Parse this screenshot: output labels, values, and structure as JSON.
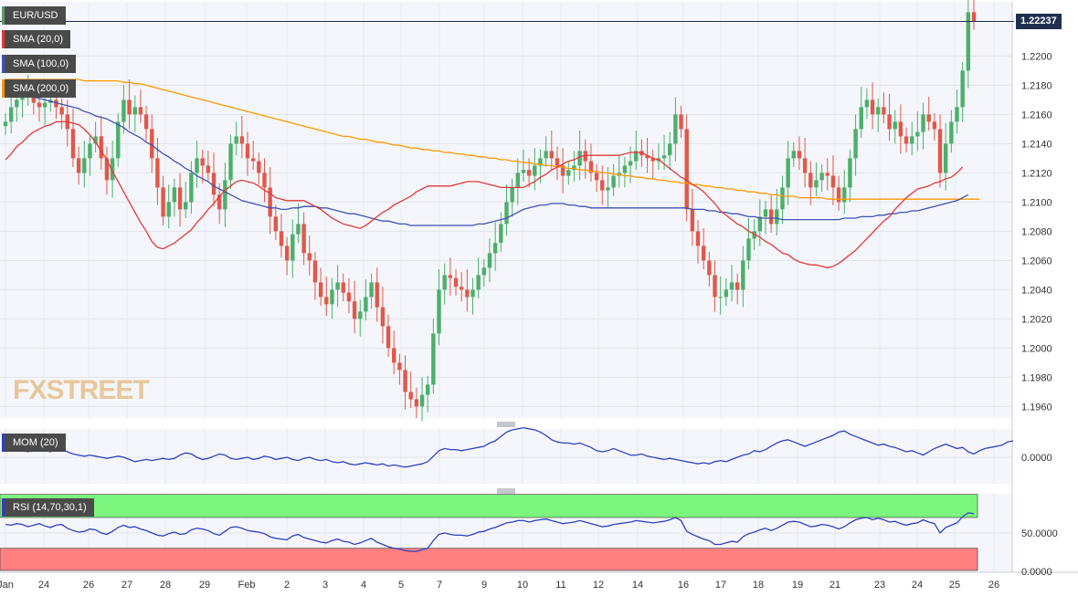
{
  "chart_data": [
    {
      "type": "candlestick",
      "title": "EUR/USD",
      "last_price": "1.22237",
      "y_ticks": [
        "1.1960",
        "1.1980",
        "1.2000",
        "1.2020",
        "1.2040",
        "1.2060",
        "1.2080",
        "1.2100",
        "1.2120",
        "1.2140",
        "1.2160",
        "1.2180",
        "1.2200"
      ],
      "ylim": [
        1.1951,
        1.2237
      ],
      "x_ticks": [
        "Jan",
        "24",
        "26",
        "27",
        "28",
        "29",
        "Feb",
        "2",
        "3",
        "4",
        "5",
        "7",
        "9",
        "10",
        "11",
        "12",
        "14",
        "16",
        "17",
        "18",
        "19",
        "21",
        "23",
        "24",
        "25",
        "26"
      ],
      "indicators": [
        {
          "name": "SMA (20,0)",
          "color": "#e53935"
        },
        {
          "name": "SMA (100,0)",
          "color": "#3f51b5"
        },
        {
          "name": "SMA (200,0)",
          "color": "#ff9800"
        }
      ],
      "watermark": "FXSTREET",
      "closes": [
        1.2155,
        1.2165,
        1.217,
        1.2172,
        1.2175,
        1.2168,
        1.2165,
        1.2168,
        1.217,
        1.2165,
        1.216,
        1.215,
        1.213,
        1.212,
        1.213,
        1.214,
        1.2145,
        1.213,
        1.2115,
        1.213,
        1.2155,
        1.217,
        1.216,
        1.2165,
        1.216,
        1.215,
        1.213,
        1.211,
        1.209,
        1.21,
        1.211,
        1.2095,
        1.21,
        1.212,
        1.213,
        1.2125,
        1.212,
        1.2105,
        1.2095,
        1.2115,
        1.214,
        1.2145,
        1.214,
        1.213,
        1.2128,
        1.212,
        1.211,
        1.209,
        1.208,
        1.207,
        1.206,
        1.2078,
        1.2085,
        1.2065,
        1.206,
        1.2045,
        1.2035,
        1.203,
        1.204,
        1.2045,
        1.2038,
        1.2032,
        1.202,
        1.2025,
        1.2035,
        1.2045,
        1.2028,
        1.2015,
        1.2,
        1.199,
        1.1985,
        1.197,
        1.1965,
        1.196,
        1.1968,
        1.1975,
        1.201,
        1.204,
        1.205,
        1.2048,
        1.2042,
        1.204,
        1.2035,
        1.204,
        1.205,
        1.2055,
        1.2065,
        1.2072,
        1.2085,
        1.21,
        1.211,
        1.212,
        1.2122,
        1.2118,
        1.2125,
        1.213,
        1.2135,
        1.213,
        1.2125,
        1.2118,
        1.2122,
        1.2125,
        1.2135,
        1.2128,
        1.212,
        1.2115,
        1.2108,
        1.211,
        1.2118,
        1.212,
        1.2125,
        1.2128,
        1.2135,
        1.2132,
        1.213,
        1.2128,
        1.213,
        1.2132,
        1.214,
        1.216,
        1.215,
        1.2095,
        1.208,
        1.207,
        1.206,
        1.205,
        1.2035,
        1.2035,
        1.204,
        1.2045,
        1.204,
        1.206,
        1.2075,
        1.208,
        1.209,
        1.2095,
        1.2085,
        1.2095,
        1.211,
        1.213,
        1.2135,
        1.213,
        1.212,
        1.211,
        1.2115,
        1.212,
        1.2118,
        1.211,
        1.21,
        1.211,
        1.213,
        1.215,
        1.2165,
        1.217,
        1.216,
        1.2165,
        1.216,
        1.215,
        1.2155,
        1.2145,
        1.214,
        1.2145,
        1.2148,
        1.216,
        1.2155,
        1.215,
        1.212,
        1.214,
        1.2155,
        1.2165,
        1.219,
        1.223,
        1.2224
      ],
      "sma20": [
        1.2129,
        1.2133,
        1.2138,
        1.2141,
        1.2145,
        1.2148,
        1.215,
        1.2152,
        1.2153,
        1.2155,
        1.2155,
        1.2155,
        1.2154,
        1.2153,
        1.215,
        1.2146,
        1.2141,
        1.2135,
        1.2129,
        1.2121,
        1.2114,
        1.2107,
        1.21,
        1.2093,
        1.2086,
        1.208,
        1.2073,
        1.2069,
        1.2068,
        1.207,
        1.2072,
        1.2075,
        1.2078,
        1.2081,
        1.2086,
        1.209,
        1.2095,
        1.2099,
        1.2104,
        1.2108,
        1.2111,
        1.2114,
        1.2115,
        1.2114,
        1.2113,
        1.2111,
        1.2108,
        1.2106,
        1.2103,
        1.2102,
        1.2101,
        1.2101,
        1.2101,
        1.2101,
        1.2099,
        1.2097,
        1.2095,
        1.2092,
        1.2089,
        1.2087,
        1.2085,
        1.2084,
        1.2083,
        1.2082,
        1.2084,
        1.2087,
        1.209,
        1.2093,
        1.2095,
        1.2098,
        1.21,
        1.2102,
        1.2104,
        1.2107,
        1.2109,
        1.2111,
        1.2111,
        1.2111,
        1.2111,
        1.2111,
        1.2112,
        1.2113,
        1.2114,
        1.2114,
        1.2114,
        1.2113,
        1.2112,
        1.2111,
        1.211,
        1.211,
        1.211,
        1.211,
        1.211,
        1.2112,
        1.2114,
        1.2117,
        1.2119,
        1.2122,
        1.2124,
        1.2126,
        1.2128,
        1.2129,
        1.2131,
        1.2132,
        1.2132,
        1.2132,
        1.2132,
        1.2132,
        1.2132,
        1.2132,
        1.2133,
        1.2134,
        1.2134,
        1.2134,
        1.2132,
        1.213,
        1.2129,
        1.2126,
        1.2123,
        1.212,
        1.2117,
        1.2115,
        1.2112,
        1.211,
        1.2107,
        1.2103,
        1.2099,
        1.2094,
        1.2091,
        1.2088,
        1.2085,
        1.2083,
        1.208,
        1.2078,
        1.2076,
        1.2073,
        1.2071,
        1.2068,
        1.2065,
        1.2064,
        1.2061,
        1.2059,
        1.2058,
        1.2057,
        1.2057,
        1.2056,
        1.2055,
        1.2056,
        1.2058,
        1.2061,
        1.2064,
        1.2067,
        1.2071,
        1.2075,
        1.2079,
        1.2083,
        1.2087,
        1.209,
        1.2095,
        1.2099,
        1.2103,
        1.2106,
        1.2109,
        1.211,
        1.2111,
        1.2113,
        1.2114,
        1.2116,
        1.2117,
        1.212,
        1.2124
      ],
      "sma100": [
        1.2178,
        1.2176,
        1.2175,
        1.2174,
        1.2173,
        1.2172,
        1.2171,
        1.217,
        1.2169,
        1.2168,
        1.2167,
        1.2166,
        1.2165,
        1.2164,
        1.2162,
        1.2161,
        1.2159,
        1.2158,
        1.2157,
        1.2155,
        1.2153,
        1.2151,
        1.2148,
        1.2146,
        1.2144,
        1.2141,
        1.2139,
        1.2136,
        1.2133,
        1.2131,
        1.2128,
        1.2126,
        1.2123,
        1.2121,
        1.2118,
        1.2116,
        1.2114,
        1.2111,
        1.2109,
        1.2107,
        1.2105,
        1.2103,
        1.2101,
        1.21,
        1.2099,
        1.2098,
        1.2097,
        1.2096,
        1.2096,
        1.2095,
        1.2095,
        1.2096,
        1.2096,
        1.2097,
        1.2097,
        1.2097,
        1.2096,
        1.2096,
        1.2095,
        1.2094,
        1.2093,
        1.2092,
        1.2092,
        1.2091,
        1.209,
        1.2089,
        1.2088,
        1.2087,
        1.2087,
        1.2086,
        1.2085,
        1.2085,
        1.2084,
        1.2084,
        1.2084,
        1.2084,
        1.2084,
        1.2084,
        1.2084,
        1.2084,
        1.2084,
        1.2084,
        1.2084,
        1.2084,
        1.2085,
        1.2085,
        1.2086,
        1.2087,
        1.2088,
        1.2089,
        1.2091,
        1.2093,
        1.2095,
        1.2096,
        1.2097,
        1.2098,
        1.2098,
        1.2099,
        1.2099,
        1.2099,
        1.2098,
        1.2098,
        1.2097,
        1.2097,
        1.2096,
        1.2096,
        1.2096,
        1.2096,
        1.2096,
        1.2096,
        1.2096,
        1.2096,
        1.2096,
        1.2096,
        1.2096,
        1.2096,
        1.2096,
        1.2096,
        1.2096,
        1.2096,
        1.2096,
        1.2096,
        1.2095,
        1.2095,
        1.2095,
        1.2094,
        1.2094,
        1.2093,
        1.2093,
        1.2092,
        1.2092,
        1.2091,
        1.209,
        1.209,
        1.2089,
        1.2089,
        1.2089,
        1.2089,
        1.2088,
        1.2088,
        1.2088,
        1.2088,
        1.2088,
        1.2088,
        1.2088,
        1.2088,
        1.2088,
        1.2088,
        1.2088,
        1.2089,
        1.2089,
        1.2089,
        1.209,
        1.209,
        1.209,
        1.2091,
        1.2091,
        1.2092,
        1.2092,
        1.2093,
        1.2093,
        1.2094,
        1.2094,
        1.2095,
        1.2096,
        1.2097,
        1.2098,
        1.2099,
        1.21,
        1.2101,
        1.2103,
        1.2105
      ],
      "sma200": [
        1.2184,
        1.2184,
        1.2184,
        1.2184,
        1.2184,
        1.2184,
        1.2184,
        1.2184,
        1.2184,
        1.2184,
        1.2184,
        1.2184,
        1.2184,
        1.2184,
        1.2183,
        1.2183,
        1.2183,
        1.2183,
        1.2183,
        1.2183,
        1.2183,
        1.2182,
        1.2182,
        1.2181,
        1.2181,
        1.218,
        1.2179,
        1.2178,
        1.2177,
        1.2176,
        1.2175,
        1.2174,
        1.2173,
        1.2172,
        1.2171,
        1.217,
        1.2169,
        1.2168,
        1.2167,
        1.2166,
        1.2165,
        1.2164,
        1.2163,
        1.2162,
        1.2161,
        1.216,
        1.2159,
        1.2158,
        1.2157,
        1.2156,
        1.2155,
        1.2154,
        1.2153,
        1.2152,
        1.2151,
        1.215,
        1.2149,
        1.2148,
        1.2147,
        1.2146,
        1.2145,
        1.2145,
        1.2144,
        1.2143,
        1.2143,
        1.2142,
        1.2141,
        1.2141,
        1.214,
        1.2139,
        1.2139,
        1.2138,
        1.2137,
        1.2137,
        1.2136,
        1.2136,
        1.2135,
        1.2135,
        1.2134,
        1.2134,
        1.2133,
        1.2133,
        1.2132,
        1.2132,
        1.2131,
        1.2131,
        1.213,
        1.213,
        1.2129,
        1.2129,
        1.2128,
        1.2128,
        1.2127,
        1.2127,
        1.2126,
        1.2126,
        1.2125,
        1.2125,
        1.2124,
        1.2124,
        1.2123,
        1.2123,
        1.2122,
        1.2122,
        1.2121,
        1.2121,
        1.212,
        1.212,
        1.2119,
        1.2119,
        1.2118,
        1.2118,
        1.2117,
        1.2117,
        1.2116,
        1.2116,
        1.2115,
        1.2115,
        1.2114,
        1.2114,
        1.2113,
        1.2113,
        1.2112,
        1.2112,
        1.2111,
        1.2111,
        1.211,
        1.211,
        1.2109,
        1.2109,
        1.2108,
        1.2108,
        1.2107,
        1.2107,
        1.2106,
        1.2106,
        1.2105,
        1.2105,
        1.2104,
        1.2104,
        1.2104,
        1.2103,
        1.2103,
        1.2103,
        1.2103,
        1.2103,
        1.2102,
        1.2102,
        1.2102,
        1.2102,
        1.2102,
        1.2102,
        1.2102,
        1.2102,
        1.2102,
        1.2102,
        1.2102,
        1.2102,
        1.2102,
        1.2102,
        1.2102,
        1.2102,
        1.2102,
        1.2102,
        1.2102,
        1.2102,
        1.2102,
        1.2102,
        1.2102,
        1.2102,
        1.2102,
        1.2102,
        1.2102,
        1.2102
      ]
    },
    {
      "type": "line",
      "title": "MOM (20)",
      "y_ticks": [
        "0.0000"
      ],
      "series_color": "#3040c0",
      "values": [
        0.6,
        0.7,
        0.8,
        0.6,
        0.5,
        0.7,
        0.8,
        0.6,
        0.5,
        0.7,
        0.8,
        0.5,
        0.3,
        0.2,
        0.1,
        0.2,
        0.1,
        0.0,
        -0.1,
        0.0,
        0.1,
        0.0,
        -0.2,
        -0.4,
        -0.3,
        -0.2,
        -0.3,
        -0.2,
        -0.1,
        -0.2,
        -0.1,
        0.2,
        0.4,
        0.3,
        0.0,
        -0.2,
        -0.1,
        0.1,
        0.3,
        0.2,
        -0.1,
        -0.2,
        -0.1,
        0.0,
        -0.2,
        -0.1,
        0.1,
        0.0,
        -0.2,
        -0.1,
        0.0,
        -0.2,
        -0.3,
        -0.1,
        0.0,
        -0.2,
        -0.3,
        -0.2,
        -0.4,
        -0.5,
        -0.4,
        -0.6,
        -0.7,
        -0.6,
        -0.5,
        -0.6,
        -0.7,
        -0.6,
        -0.8,
        -0.7,
        -0.8,
        -0.9,
        -0.8,
        -0.7,
        -0.6,
        -0.4,
        0.1,
        0.6,
        0.8,
        0.7,
        0.7,
        0.6,
        0.7,
        0.8,
        0.9,
        1.0,
        1.3,
        1.5,
        1.9,
        2.3,
        2.5,
        2.6,
        2.7,
        2.6,
        2.5,
        2.3,
        2.0,
        1.6,
        1.4,
        1.3,
        1.3,
        1.2,
        1.3,
        1.1,
        0.9,
        0.6,
        0.5,
        0.6,
        0.8,
        0.6,
        0.4,
        0.2,
        0.2,
        0.3,
        0.1,
        0.0,
        -0.1,
        -0.2,
        -0.1,
        -0.2,
        -0.3,
        -0.4,
        -0.5,
        -0.6,
        -0.5,
        -0.6,
        -0.4,
        -0.3,
        -0.4,
        -0.2,
        0.0,
        0.2,
        0.3,
        0.6,
        0.5,
        0.7,
        1.0,
        1.3,
        1.5,
        1.6,
        1.4,
        1.2,
        1.0,
        1.2,
        1.4,
        1.6,
        1.8,
        2.0,
        2.3,
        2.4,
        2.1,
        1.9,
        1.7,
        1.5,
        1.3,
        1.1,
        1.2,
        1.0,
        0.9,
        0.7,
        0.5,
        0.6,
        0.4,
        0.2,
        0.5,
        0.8,
        1.0,
        1.2,
        1.0,
        0.8,
        0.9,
        0.5,
        0.3,
        0.6,
        0.8,
        0.9,
        1.0,
        1.1,
        1.4,
        1.5
      ]
    },
    {
      "type": "line",
      "title": "RSI (14,70,30,1)",
      "y_ticks": [
        "50.0000",
        "0.0000"
      ],
      "levels": [
        70,
        30
      ],
      "series_color": "#3040c0",
      "values": [
        61,
        60,
        62,
        61,
        58,
        60,
        62,
        59,
        57,
        60,
        61,
        56,
        53,
        51,
        52,
        55,
        54,
        50,
        48,
        52,
        57,
        60,
        57,
        58,
        55,
        53,
        50,
        47,
        46,
        49,
        51,
        48,
        49,
        54,
        56,
        55,
        53,
        49,
        47,
        52,
        57,
        58,
        56,
        53,
        52,
        51,
        49,
        45,
        43,
        42,
        41,
        46,
        48,
        44,
        42,
        40,
        38,
        37,
        40,
        42,
        39,
        38,
        35,
        37,
        40,
        43,
        38,
        35,
        32,
        30,
        29,
        27,
        26,
        26,
        28,
        30,
        40,
        48,
        50,
        48,
        47,
        47,
        46,
        48,
        51,
        52,
        55,
        57,
        60,
        63,
        64,
        66,
        66,
        64,
        66,
        67,
        68,
        66,
        64,
        62,
        63,
        64,
        66,
        64,
        62,
        60,
        58,
        59,
        61,
        62,
        63,
        64,
        66,
        65,
        64,
        63,
        64,
        65,
        67,
        70,
        66,
        52,
        48,
        45,
        42,
        40,
        35,
        35,
        37,
        39,
        38,
        45,
        49,
        51,
        54,
        56,
        53,
        56,
        60,
        64,
        65,
        64,
        61,
        58,
        59,
        61,
        60,
        58,
        55,
        58,
        63,
        67,
        69,
        70,
        67,
        69,
        67,
        64,
        65,
        62,
        60,
        62,
        63,
        67,
        64,
        62,
        50,
        57,
        60,
        63,
        71,
        76,
        75
      ]
    }
  ]
}
